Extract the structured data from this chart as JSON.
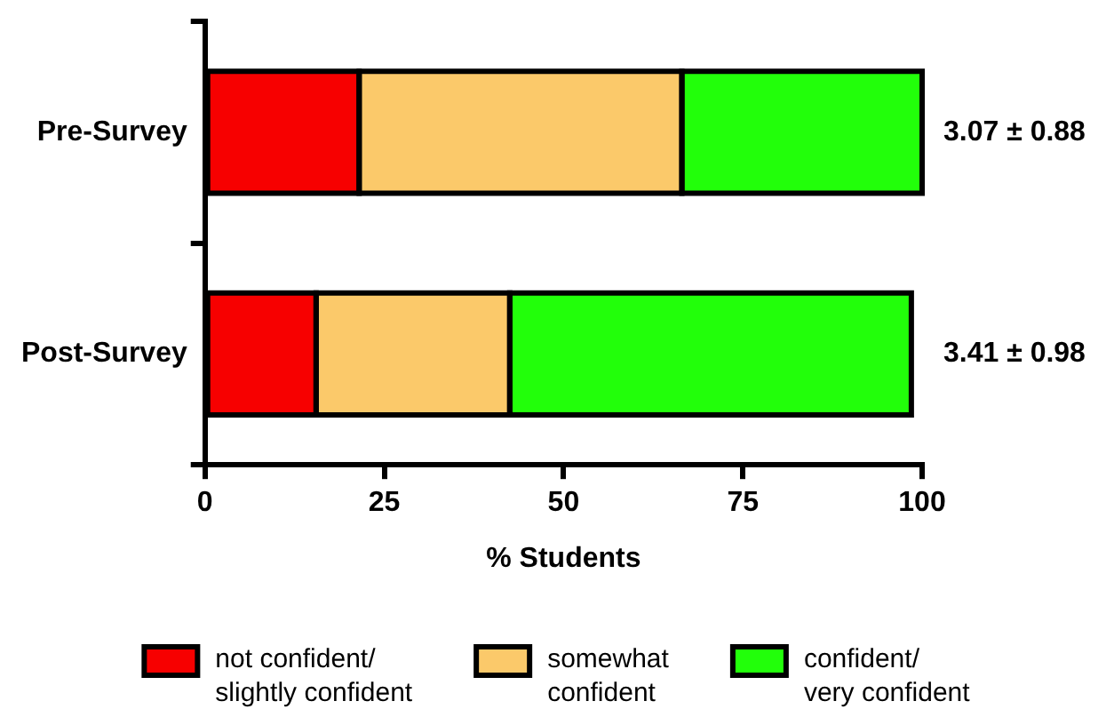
{
  "chart_data": {
    "type": "bar",
    "orientation": "horizontal",
    "stacked": true,
    "xlabel": "% Students",
    "categories": [
      "Pre-Survey",
      "Post-Survey"
    ],
    "series": [
      {
        "name": "not confident/\nslightly confident",
        "color": "#f70000",
        "values": [
          21.5,
          15.5
        ]
      },
      {
        "name": "somewhat\nconfident",
        "color": "#fbc96a",
        "values": [
          45,
          27
        ]
      },
      {
        "name": "confident/\nvery confident",
        "color": "#22ff0a",
        "values": [
          33.5,
          56
        ]
      }
    ],
    "xlim": [
      0,
      100
    ],
    "xticks": [
      0,
      25,
      50,
      75,
      100
    ],
    "grid": false,
    "legend": "bottom",
    "annotations": [
      "3.07 ± 0.88",
      "3.41 ± 0.98"
    ]
  }
}
